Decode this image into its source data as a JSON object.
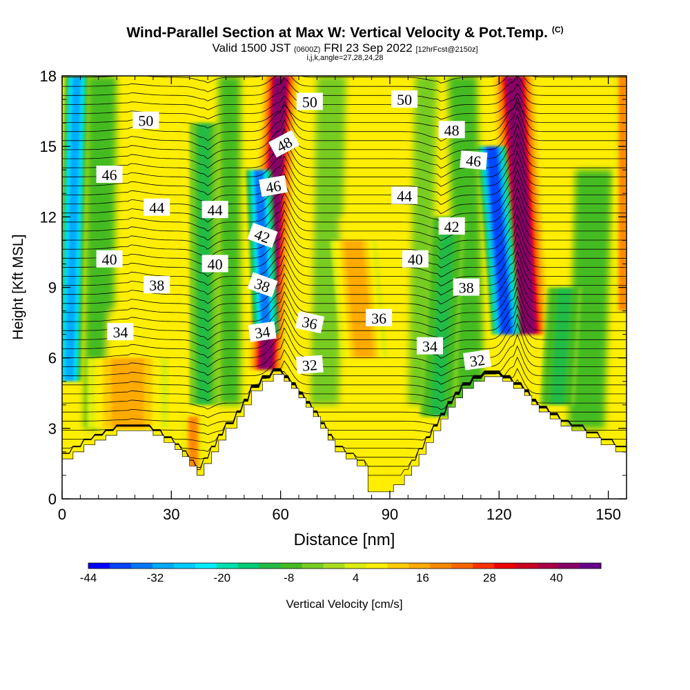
{
  "title": {
    "main": "Wind-Parallel Section at Max W: Vertical Velocity & Pot.Temp.",
    "units_tag": "(C)",
    "valid_prefix": "Valid 1500 JST",
    "valid_utc": "(0600Z)",
    "valid_date": "FRI 23 Sep 2022",
    "forecast": "[12hrFcst@2150z]",
    "ijk": "i,j,k,angle=27,28,24,28"
  },
  "chart_data": {
    "type": "heatmap",
    "xlabel": "Distance [nm]",
    "ylabel": "Height [Kft MSL]",
    "xlim": [
      0,
      155
    ],
    "ylim": [
      0,
      18
    ],
    "x_ticks": [
      0,
      30,
      60,
      90,
      120,
      150
    ],
    "y_ticks": [
      0,
      3,
      6,
      9,
      12,
      15,
      18
    ],
    "colorbar": {
      "label": "Vertical Velocity [cm/s]",
      "tick_labels": [
        "-44",
        "-32",
        "-20",
        "-8",
        "4",
        "16",
        "28",
        "40"
      ],
      "tick_values": [
        -44,
        -32,
        -20,
        -8,
        4,
        16,
        28,
        40
      ],
      "range": [
        -44,
        48
      ],
      "colors": [
        "#0000ff",
        "#0044ff",
        "#0077ff",
        "#00aaff",
        "#00ccff",
        "#00eeff",
        "#00e0b0",
        "#00cc77",
        "#22bb44",
        "#44bb22",
        "#77cc22",
        "#aadd22",
        "#ddee11",
        "#ffee00",
        "#ffcc00",
        "#ffaa00",
        "#ff8800",
        "#ff6600",
        "#ff3300",
        "#ee0000",
        "#cc0022",
        "#aa0044",
        "#880066",
        "#660088"
      ]
    },
    "terrain_kft": [
      [
        0,
        1.7
      ],
      [
        3,
        1.7
      ],
      [
        3,
        2.0
      ],
      [
        6,
        2.0
      ],
      [
        6,
        2.3
      ],
      [
        9,
        2.3
      ],
      [
        9,
        2.5
      ],
      [
        12,
        2.5
      ],
      [
        12,
        2.7
      ],
      [
        15,
        2.7
      ],
      [
        15,
        2.9
      ],
      [
        25,
        2.9
      ],
      [
        25,
        2.7
      ],
      [
        28,
        2.7
      ],
      [
        28,
        2.4
      ],
      [
        31,
        2.4
      ],
      [
        31,
        2.1
      ],
      [
        33,
        2.1
      ],
      [
        33,
        1.8
      ],
      [
        35,
        1.8
      ],
      [
        35,
        1.4
      ],
      [
        37,
        1.4
      ],
      [
        37,
        1.0
      ],
      [
        39,
        1.0
      ],
      [
        39,
        1.5
      ],
      [
        41,
        1.5
      ],
      [
        41,
        2.0
      ],
      [
        43,
        2.0
      ],
      [
        43,
        2.5
      ],
      [
        45,
        2.5
      ],
      [
        45,
        3.0
      ],
      [
        48,
        3.0
      ],
      [
        48,
        3.5
      ],
      [
        50,
        3.5
      ],
      [
        50,
        4.0
      ],
      [
        52,
        4.0
      ],
      [
        52,
        4.6
      ],
      [
        55,
        4.6
      ],
      [
        55,
        5.0
      ],
      [
        58,
        5.0
      ],
      [
        58,
        5.3
      ],
      [
        61,
        5.3
      ],
      [
        61,
        5.0
      ],
      [
        63,
        5.0
      ],
      [
        63,
        4.7
      ],
      [
        65,
        4.7
      ],
      [
        65,
        4.3
      ],
      [
        67,
        4.3
      ],
      [
        67,
        3.9
      ],
      [
        69,
        3.9
      ],
      [
        69,
        3.5
      ],
      [
        71,
        3.5
      ],
      [
        71,
        3.0
      ],
      [
        73,
        3.0
      ],
      [
        73,
        2.5
      ],
      [
        75,
        2.5
      ],
      [
        75,
        2.0
      ],
      [
        78,
        2.0
      ],
      [
        78,
        1.7
      ],
      [
        81,
        1.7
      ],
      [
        81,
        1.4
      ],
      [
        84,
        1.4
      ],
      [
        84,
        0.3
      ],
      [
        91,
        0.3
      ],
      [
        91,
        0.6
      ],
      [
        94,
        0.6
      ],
      [
        94,
        1.0
      ],
      [
        96,
        1.0
      ],
      [
        96,
        1.4
      ],
      [
        98,
        1.4
      ],
      [
        98,
        1.9
      ],
      [
        100,
        1.9
      ],
      [
        100,
        2.4
      ],
      [
        102,
        2.4
      ],
      [
        102,
        2.9
      ],
      [
        104,
        2.9
      ],
      [
        104,
        3.4
      ],
      [
        106,
        3.4
      ],
      [
        106,
        3.9
      ],
      [
        108,
        3.9
      ],
      [
        108,
        4.3
      ],
      [
        110,
        4.3
      ],
      [
        110,
        4.7
      ],
      [
        113,
        4.7
      ],
      [
        113,
        5.0
      ],
      [
        116,
        5.0
      ],
      [
        116,
        5.2
      ],
      [
        121,
        5.2
      ],
      [
        121,
        5.0
      ],
      [
        124,
        5.0
      ],
      [
        124,
        4.7
      ],
      [
        127,
        4.7
      ],
      [
        127,
        4.4
      ],
      [
        129,
        4.4
      ],
      [
        129,
        4.0
      ],
      [
        131,
        4.0
      ],
      [
        131,
        3.7
      ],
      [
        134,
        3.7
      ],
      [
        134,
        3.4
      ],
      [
        137,
        3.4
      ],
      [
        137,
        3.1
      ],
      [
        140,
        3.1
      ],
      [
        140,
        2.9
      ],
      [
        144,
        2.9
      ],
      [
        144,
        2.6
      ],
      [
        148,
        2.6
      ],
      [
        148,
        2.3
      ],
      [
        152,
        2.3
      ],
      [
        152,
        2.0
      ],
      [
        155,
        2.0
      ]
    ],
    "updrafts": [
      {
        "x_base": 18,
        "y_base": 3.0,
        "x_top": 18,
        "y_top": 6.0,
        "w": 16,
        "width_nm": 7
      },
      {
        "x_base": 56,
        "y_base": 5.5,
        "x_top": 60,
        "y_top": 18,
        "w": 42,
        "width_nm": 3
      },
      {
        "x_base": 83,
        "y_base": 6.0,
        "x_top": 80,
        "y_top": 11,
        "w": 16,
        "width_nm": 4
      },
      {
        "x_base": 128,
        "y_base": 7.0,
        "x_top": 124,
        "y_top": 18,
        "w": 44,
        "width_nm": 3.5
      },
      {
        "x_base": 154,
        "y_base": 8.0,
        "x_top": 154,
        "y_top": 18,
        "w": 20,
        "width_nm": 1.5
      },
      {
        "x_base": 36,
        "y_base": 1.2,
        "x_top": 36,
        "y_top": 3.5,
        "w": 18,
        "width_nm": 2
      }
    ],
    "downdrafts": [
      {
        "x_base": 2,
        "y_base": 5.0,
        "x_top": 4,
        "y_top": 18,
        "w": -30,
        "width_nm": 2
      },
      {
        "x_base": 56,
        "y_base": 7.0,
        "x_top": 54,
        "y_top": 14,
        "w": -34,
        "width_nm": 2.2
      },
      {
        "x_base": 122,
        "y_base": 7.0,
        "x_top": 118,
        "y_top": 15,
        "w": -40,
        "width_nm": 2.5
      },
      {
        "x_base": 39,
        "y_base": 4.0,
        "x_top": 39,
        "y_top": 16,
        "w": -10,
        "width_nm": 2.5
      },
      {
        "x_base": 103,
        "y_base": 3.5,
        "x_top": 106,
        "y_top": 12,
        "w": -12,
        "width_nm": 3
      },
      {
        "x_base": 136,
        "y_base": 4.0,
        "x_top": 138,
        "y_top": 9,
        "w": -12,
        "width_nm": 3
      }
    ],
    "theta_contour_labels": [
      {
        "text": "50",
        "x": 23,
        "y": 16.1,
        "angle": 0
      },
      {
        "text": "46",
        "x": 13,
        "y": 13.8,
        "angle": 0
      },
      {
        "text": "44",
        "x": 26,
        "y": 12.4,
        "angle": 0
      },
      {
        "text": "44",
        "x": 42,
        "y": 12.3,
        "angle": 0
      },
      {
        "text": "40",
        "x": 13,
        "y": 10.2,
        "angle": 0
      },
      {
        "text": "40",
        "x": 42,
        "y": 10.0,
        "angle": 0
      },
      {
        "text": "38",
        "x": 26,
        "y": 9.1,
        "angle": 0
      },
      {
        "text": "34",
        "x": 16,
        "y": 7.1,
        "angle": 0
      },
      {
        "text": "50",
        "x": 68,
        "y": 16.9,
        "angle": 0
      },
      {
        "text": "48",
        "x": 61,
        "y": 15.1,
        "angle": -28
      },
      {
        "text": "46",
        "x": 58,
        "y": 13.3,
        "angle": -10
      },
      {
        "text": "42",
        "x": 55,
        "y": 11.2,
        "angle": 20
      },
      {
        "text": "38",
        "x": 55,
        "y": 9.1,
        "angle": 20
      },
      {
        "text": "34",
        "x": 55,
        "y": 7.1,
        "angle": -8
      },
      {
        "text": "36",
        "x": 68,
        "y": 7.5,
        "angle": 12
      },
      {
        "text": "32",
        "x": 68,
        "y": 5.7,
        "angle": -4
      },
      {
        "text": "50",
        "x": 94,
        "y": 17.0,
        "angle": 0
      },
      {
        "text": "48",
        "x": 107,
        "y": 15.7,
        "angle": 0
      },
      {
        "text": "46",
        "x": 113,
        "y": 14.4,
        "angle": 5
      },
      {
        "text": "44",
        "x": 94,
        "y": 12.9,
        "angle": 0
      },
      {
        "text": "42",
        "x": 107,
        "y": 11.6,
        "angle": 0
      },
      {
        "text": "40",
        "x": 97,
        "y": 10.2,
        "angle": 0
      },
      {
        "text": "38",
        "x": 111,
        "y": 9.0,
        "angle": 0
      },
      {
        "text": "36",
        "x": 87,
        "y": 7.7,
        "angle": 0
      },
      {
        "text": "34",
        "x": 101,
        "y": 6.5,
        "angle": 0
      },
      {
        "text": "32",
        "x": 114,
        "y": 5.9,
        "angle": -8
      }
    ]
  }
}
